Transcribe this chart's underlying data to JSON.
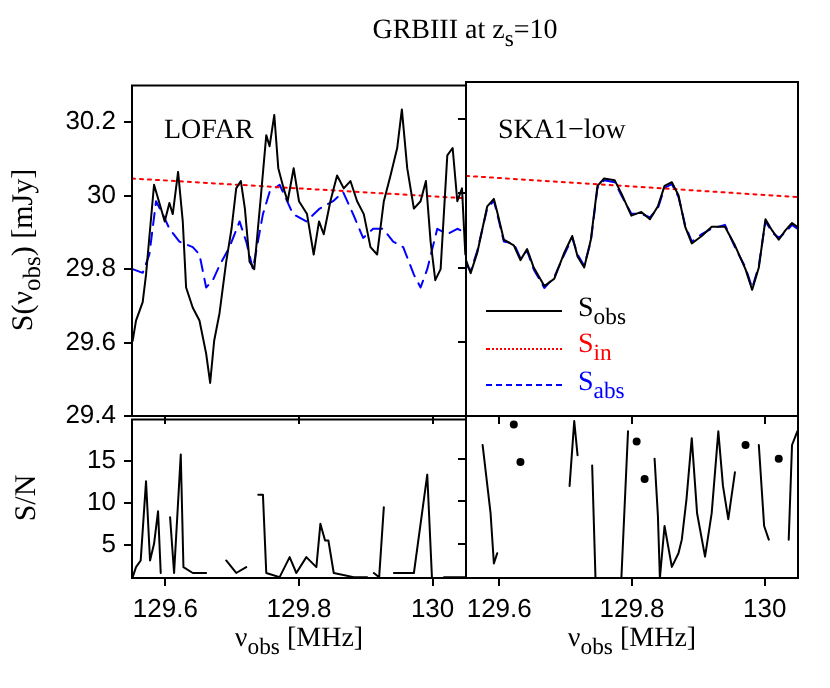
{
  "chart_data": [
    {
      "type": "line",
      "title": "GRBIII at z$_{s}$=10",
      "ylabel": "S(ν$_{obs}$) [mJy]",
      "annotations": [
        "LOFAR"
      ],
      "xlim": [
        129.55,
        130.05
      ],
      "ylim": [
        29.4,
        30.3
      ],
      "xticks": [
        129.6,
        129.8,
        130
      ],
      "yticks": [
        29.4,
        29.6,
        29.8,
        30,
        30.2
      ],
      "tick_labels": "y",
      "marker": "none",
      "series": [
        {
          "color": "#000000",
          "line_style": "solid",
          "x": [
            129.551,
            129.556,
            129.566,
            129.571,
            129.583,
            129.591,
            129.599,
            129.606,
            129.611,
            129.619,
            129.626,
            129.631,
            129.641,
            129.651,
            129.661,
            129.667,
            129.673,
            129.681,
            129.691,
            129.699,
            129.706,
            129.713,
            129.719,
            129.726,
            129.733,
            129.743,
            129.751,
            129.756,
            129.763,
            129.769,
            129.777,
            129.783,
            129.792,
            129.8,
            129.812,
            129.822,
            129.83,
            129.837,
            129.847,
            129.857,
            129.867,
            129.877,
            129.887,
            129.897,
            129.907,
            129.917,
            129.927,
            129.937,
            129.947,
            129.954,
            129.962,
            129.972,
            129.982,
            129.99,
            129.997,
            130.004,
            130.012,
            130.022,
            130.03,
            130.037,
            130.044,
            130.049
          ],
          "values": [
            29.605,
            29.66,
            29.71,
            29.785,
            30.03,
            29.98,
            29.93,
            29.98,
            29.95,
            30.065,
            29.93,
            29.75,
            29.695,
            29.66,
            29.57,
            29.49,
            29.605,
            29.68,
            29.82,
            29.91,
            30.02,
            30.04,
            29.965,
            29.82,
            29.8,
            30.0,
            30.165,
            30.135,
            30.22,
            30.075,
            30.02,
            29.985,
            30.075,
            29.985,
            29.95,
            29.84,
            29.93,
            29.895,
            29.985,
            30.055,
            30.02,
            30.04,
            29.985,
            29.95,
            29.86,
            29.84,
            29.985,
            30.055,
            30.13,
            30.235,
            30.075,
            29.965,
            29.985,
            30.04,
            29.875,
            29.77,
            29.8,
            30.11,
            30.13,
            29.985,
            30.02,
            29.84
          ]
        },
        {
          "color": "#ff0000",
          "line_style": "dotted",
          "x": [
            129.55,
            130.05
          ],
          "values": [
            30.047,
            29.993
          ]
        },
        {
          "color": "#0000ff",
          "line_style": "dashed",
          "x": [
            129.551,
            129.566,
            129.576,
            129.586,
            129.596,
            129.606,
            129.621,
            129.641,
            129.651,
            129.661,
            129.671,
            129.681,
            129.696,
            129.711,
            129.721,
            129.731,
            129.746,
            129.756,
            129.771,
            129.791,
            129.811,
            129.831,
            129.851,
            129.866,
            129.881,
            129.896,
            129.911,
            129.926,
            129.941,
            129.956,
            129.972,
            129.982,
            129.992,
            130.007,
            130.022,
            130.037,
            130.049
          ],
          "values": [
            29.8,
            29.79,
            29.84,
            29.985,
            29.95,
            29.91,
            29.875,
            29.86,
            29.84,
            29.75,
            29.77,
            29.81,
            29.86,
            29.93,
            29.875,
            29.8,
            29.95,
            30.01,
            30.03,
            29.95,
            29.93,
            29.965,
            29.985,
            30.01,
            29.95,
            29.885,
            29.91,
            29.91,
            29.875,
            29.86,
            29.785,
            29.75,
            29.8,
            29.91,
            29.895,
            29.91,
            29.9
          ]
        }
      ]
    },
    {
      "type": "line",
      "annotations": [
        "SKA1−low"
      ],
      "xlim": [
        129.55,
        130.05
      ],
      "ylim": [
        29.4,
        30.3
      ],
      "xticks": [
        129.6,
        129.8,
        130
      ],
      "yticks": [
        29.4,
        29.6,
        29.8,
        30,
        30.2
      ],
      "tick_labels": false,
      "marker": "none",
      "legend": "bottom left",
      "series": [
        {
          "name": "S$_{obs}$",
          "color": "#000000",
          "line_style": "solid",
          "x": [
            129.55,
            129.557,
            129.567,
            129.582,
            129.592,
            129.597,
            129.607,
            129.622,
            129.632,
            129.642,
            129.652,
            129.668,
            129.683,
            129.698,
            129.71,
            129.718,
            129.728,
            129.738,
            129.748,
            129.758,
            129.774,
            129.784,
            129.799,
            129.814,
            129.827,
            129.839,
            129.849,
            129.86,
            129.87,
            129.88,
            129.89,
            129.905,
            129.92,
            129.94,
            129.955,
            129.971,
            129.981,
            129.991,
            130.001,
            130.011,
            130.021,
            130.031,
            130.041,
            130.049
          ],
          "values": [
            29.82,
            29.785,
            29.84,
            29.965,
            29.985,
            29.95,
            29.875,
            29.86,
            29.82,
            29.85,
            29.8,
            29.75,
            29.77,
            29.84,
            29.885,
            29.83,
            29.8,
            29.875,
            30.02,
            30.04,
            30.035,
            30.0,
            29.94,
            29.95,
            29.93,
            29.965,
            30.02,
            30.03,
            29.995,
            29.91,
            29.865,
            29.885,
            29.91,
            29.91,
            29.86,
            29.795,
            29.74,
            29.8,
            29.93,
            29.9,
            29.875,
            29.9,
            29.92,
            29.91
          ]
        },
        {
          "name": "S$_{in}$",
          "color": "#ff0000",
          "line_style": "dotted",
          "x": [
            129.55,
            130.05
          ],
          "values": [
            30.047,
            29.99
          ]
        },
        {
          "name": "S$_{abs}$",
          "color": "#0000ff",
          "line_style": "dashed",
          "x": [
            129.55,
            129.557,
            129.567,
            129.582,
            129.592,
            129.597,
            129.607,
            129.622,
            129.632,
            129.642,
            129.652,
            129.668,
            129.683,
            129.698,
            129.71,
            129.718,
            129.728,
            129.738,
            129.748,
            129.758,
            129.774,
            129.784,
            129.799,
            129.814,
            129.827,
            129.839,
            129.849,
            129.86,
            129.87,
            129.88,
            129.89,
            129.905,
            129.92,
            129.94,
            129.955,
            129.971,
            129.981,
            129.991,
            130.001,
            130.011,
            130.021,
            130.031,
            130.041,
            130.049
          ],
          "values": [
            29.81,
            29.79,
            29.845,
            29.96,
            29.98,
            29.945,
            29.87,
            29.865,
            29.825,
            29.845,
            29.795,
            29.745,
            29.775,
            29.835,
            29.88,
            29.835,
            29.805,
            29.87,
            30.015,
            30.035,
            30.03,
            29.995,
            29.945,
            29.945,
            29.935,
            29.96,
            30.015,
            30.025,
            29.99,
            29.915,
            29.87,
            29.89,
            29.905,
            29.915,
            29.855,
            29.8,
            29.745,
            29.805,
            29.925,
            29.895,
            29.88,
            29.895,
            29.915,
            29.905
          ]
        }
      ]
    },
    {
      "type": "line",
      "xlabel": "ν$_{obs}$ [MHz]",
      "ylabel": "S/N",
      "xlim": [
        129.55,
        130.05
      ],
      "ylim": [
        1,
        20
      ],
      "xticks": [
        129.6,
        129.8,
        130
      ],
      "yticks": [
        5,
        10,
        15
      ],
      "marker": "none",
      "series": [
        {
          "color": "#000000",
          "line_style": "solid",
          "x": [
            129.551,
            129.556,
            129.563,
            129.571,
            129.577,
            129.583,
            129.589,
            129.593,
            129.599,
            129.603,
            129.607,
            129.613,
            129.623,
            129.627,
            129.641,
            129.661,
            129.676,
            129.686,
            129.691,
            129.706,
            129.721,
            129.726,
            129.733,
            129.739,
            129.746,
            129.751,
            129.771,
            129.786,
            129.796,
            129.811,
            129.826,
            129.832,
            129.839,
            129.844,
            129.852,
            129.882,
            129.902,
            129.907,
            129.912,
            129.92,
            129.927,
            129.93,
            129.937,
            129.942,
            129.972,
            129.992,
            129.999,
            130.007,
            130.012,
            130.017,
            130.042,
            130.049
          ],
          "values": [
            1.1,
            2.3,
            3.1,
            12.6,
            3.1,
            5.1,
            9.0,
            1.6,
            null,
            null,
            8.3,
            1.6,
            15.8,
            2.3,
            1.6,
            1.6,
            null,
            null,
            3.1,
            1.6,
            2.3,
            null,
            null,
            11.0,
            11.0,
            1.6,
            1.1,
            3.5,
            1.6,
            3.5,
            2.3,
            7.5,
            5.5,
            5.5,
            1.6,
            1.1,
            1.1,
            null,
            1.6,
            1.1,
            9.5,
            null,
            null,
            1.6,
            1.6,
            13.4,
            1.1,
            null,
            null,
            1.1,
            1.1,
            1.1
          ]
        }
      ]
    },
    {
      "type": "line",
      "xlabel": "ν$_{obs}$ [MHz]",
      "xlim": [
        129.55,
        130.05
      ],
      "ylim": [
        1,
        20
      ],
      "xticks": [
        129.6,
        129.8,
        130
      ],
      "yticks": [
        5,
        10,
        15
      ],
      "tick_labels": "x",
      "marker": "none",
      "series": [
        {
          "color": "#000000",
          "line_style": "solid",
          "x": [
            129.575,
            129.587,
            129.592,
            129.597,
            129.607,
            129.622,
            129.627,
            129.632,
            129.637,
            129.703,
            129.706,
            129.713,
            129.718,
            129.723,
            129.738,
            129.74,
            129.745,
            129.748,
            129.784,
            129.794,
            129.799,
            129.807,
            129.814,
            129.819,
            129.824,
            129.834,
            129.839,
            129.842,
            129.849,
            129.86,
            129.87,
            129.875,
            129.882,
            129.89,
            129.898,
            129.91,
            129.92,
            129.93,
            129.937,
            129.945,
            129.955,
            129.961,
            129.971,
            129.976,
            129.991,
            129.999,
            130.006,
            130.011,
            130.021,
            130.026,
            130.036,
            130.041,
            130.049
          ],
          "values": [
            16.6,
            8.6,
            2.7,
            3.9,
            null,
            19.0,
            null,
            14.6,
            null,
            null,
            11.8,
            19.4,
            15.4,
            null,
            null,
            14.2,
            1,
            null,
            1,
            18.2,
            null,
            17.0,
            null,
            12.6,
            null,
            15,
            8.3,
            1,
            7.1,
            2.3,
            3.9,
            5.5,
            10.2,
            17.4,
            8.6,
            3.5,
            8.6,
            18.2,
            11.8,
            7.9,
            13.4,
            null,
            16.6,
            null,
            16.6,
            7.1,
            5.5,
            null,
            15,
            null,
            5.5,
            16.6,
            18.2
          ]
        }
      ]
    }
  ]
}
